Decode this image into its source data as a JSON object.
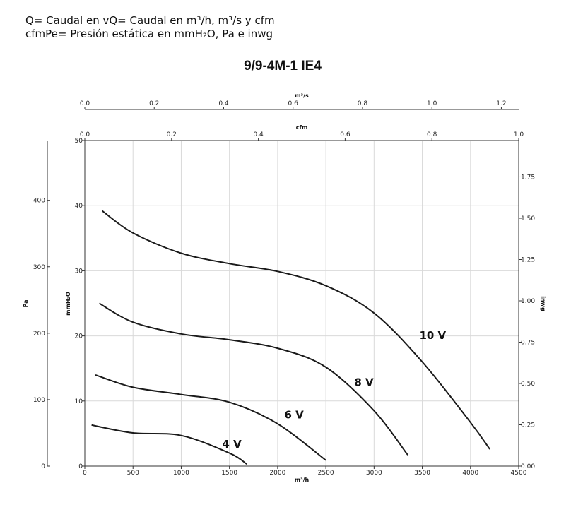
{
  "header": {
    "line1": "Q= Caudal en vQ= Caudal en m³/h, m³/s y cfm",
    "line2": "cfmPe= Presión estática en mmH₂O, Pa e inwg"
  },
  "chart_data": {
    "type": "line",
    "title": "9/9-4M-1 IE4",
    "xlabel": "m³/h",
    "ylabel": "mmH₂O",
    "xlim": [
      0,
      4500
    ],
    "ylim": [
      0,
      50
    ],
    "grid": true,
    "x_ticks": [
      "0",
      "500",
      "1000",
      "1500",
      "2000",
      "2500",
      "3000",
      "3500",
      "4000",
      "4500"
    ],
    "y_ticks": [
      "0",
      "10",
      "20",
      "30",
      "40",
      "50"
    ],
    "secondary_axes": {
      "top_m3s": {
        "label": "m³/s",
        "range": [
          0,
          1.25
        ],
        "ticks": [
          "0.0",
          "0.2",
          "0.4",
          "0.6",
          "0.8",
          "1.0",
          "1.2"
        ]
      },
      "top_cfm": {
        "label": "cfm",
        "range": [
          0,
          1.0
        ],
        "ticks": [
          "0.0",
          "0.2",
          "0.4",
          "0.6",
          "0.8",
          "1.0"
        ]
      },
      "left_pa": {
        "label": "Pa",
        "range": [
          0,
          490
        ],
        "ticks": [
          "0",
          "100",
          "200",
          "300",
          "400"
        ]
      },
      "right_inwg": {
        "label": "inwg",
        "range": [
          0,
          1.97
        ],
        "ticks": [
          "0.00",
          "0.25",
          "0.50",
          "0.75",
          "1.00",
          "1.25",
          "1.50",
          "1.75"
        ]
      }
    },
    "series": [
      {
        "name": "10 V",
        "x": [
          180,
          500,
          1000,
          1500,
          2000,
          2500,
          3000,
          3500,
          4000,
          4200
        ],
        "y": [
          39.2,
          35.8,
          32.7,
          31.1,
          29.9,
          27.7,
          23.5,
          16.0,
          6.7,
          2.6
        ]
      },
      {
        "name": "8 V",
        "x": [
          150,
          500,
          1000,
          1500,
          2000,
          2500,
          3000,
          3350
        ],
        "y": [
          25.0,
          22.1,
          20.3,
          19.4,
          18.1,
          15.2,
          8.5,
          1.7
        ]
      },
      {
        "name": "6 V",
        "x": [
          110,
          500,
          1000,
          1500,
          2000,
          2500
        ],
        "y": [
          14.0,
          12.1,
          11.0,
          9.8,
          6.5,
          0.9
        ]
      },
      {
        "name": "4 V",
        "x": [
          70,
          500,
          1000,
          1500,
          1680
        ],
        "y": [
          6.3,
          5.1,
          4.7,
          2.0,
          0.3
        ]
      }
    ]
  }
}
